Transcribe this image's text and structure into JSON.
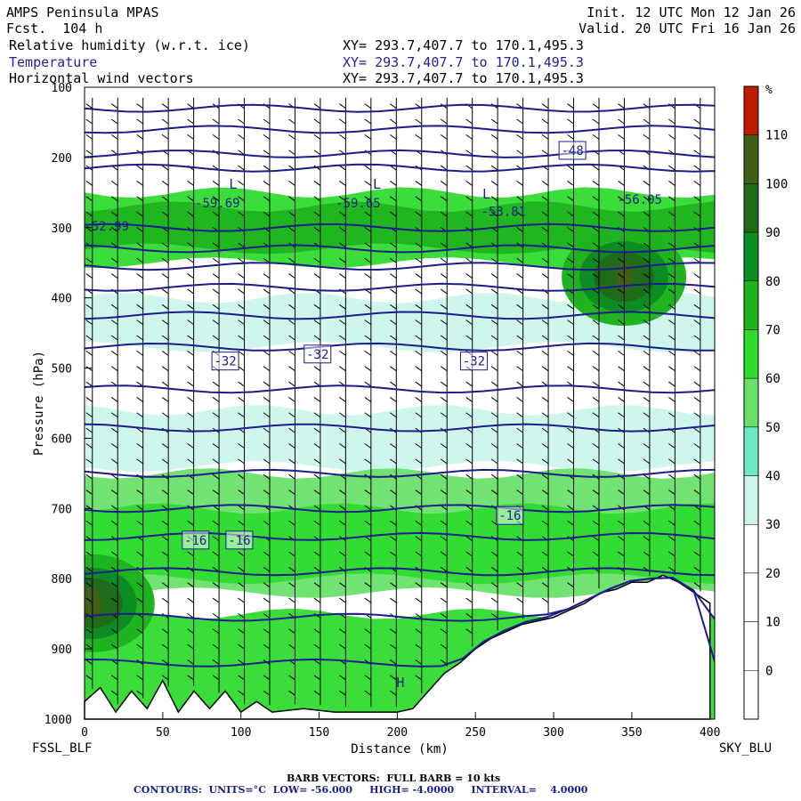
{
  "header": {
    "model": "AMPS Peninsula MPAS",
    "fcst": "Fcst.  104 h",
    "init": "Init. 12 UTC Mon 12 Jan 26",
    "valid": "Valid. 20 UTC Fri 16 Jan 26",
    "fields": [
      {
        "name": "Relative humidity (w.r.t. ice)",
        "xy": "XY= 293.7,407.7 to 170.1,495.3"
      },
      {
        "name": "Temperature",
        "xy": "XY= 293.7,407.7 to 170.1,495.3"
      },
      {
        "name": "Horizontal wind vectors",
        "xy": "XY= 293.7,407.7 to 170.1,495.3"
      }
    ]
  },
  "endpoints": {
    "left": "FSSL_BLF",
    "right": "SKY_BLU"
  },
  "footer": {
    "barb": "BARB VECTORS:  FULL BARB = 10 kts",
    "contours": "CONTOURS:  UNITS=°C  LOW= -56.000     HIGH= -4.0000     INTERVAL=    4.0000"
  },
  "colors": {
    "rh": [
      "#ffffff",
      "#ffffff",
      "#ffffff",
      "#ffffff",
      "#ccf5ec",
      "#6fe8c3",
      "#6ae06a",
      "#2fdb2f",
      "#1fb31f",
      "#0e8c24",
      "#1f6b1a",
      "#3f5f16",
      "#c01a00"
    ],
    "temperature": "#1c1c8c",
    "terrain": "#ffffff"
  },
  "chart_data": {
    "type": "heatmap",
    "xlabel": "Distance (km)",
    "ylabel": "Pressure (hPa)",
    "xlim": [
      0,
      403
    ],
    "ylim": [
      1000,
      100
    ],
    "xticks": [
      "0",
      "50",
      "100",
      "150",
      "200",
      "250",
      "300",
      "350",
      "400"
    ],
    "xtick_values": [
      0,
      50,
      100,
      150,
      200,
      250,
      300,
      350,
      400
    ],
    "yticks": [
      "100",
      "200",
      "300",
      "400",
      "500",
      "600",
      "700",
      "800",
      "900",
      "1000"
    ],
    "ytick_values": [
      100,
      200,
      300,
      400,
      500,
      600,
      700,
      800,
      900,
      1000
    ],
    "colorbar": {
      "unit": "%",
      "labels": [
        "110",
        "100",
        "90",
        "80",
        "70",
        "60",
        "50",
        "40",
        "30",
        "20",
        "10",
        "0"
      ],
      "levels": [
        110,
        100,
        90,
        80,
        70,
        60,
        50,
        40,
        30,
        20,
        10,
        0
      ]
    },
    "rh_layers": [
      {
        "p_top": 250,
        "p_bottom": 350,
        "rh": 70
      },
      {
        "p_top": 270,
        "p_bottom": 330,
        "rh": 80
      },
      {
        "p_top": 400,
        "p_bottom": 470,
        "rh": 40
      },
      {
        "p_top": 560,
        "p_bottom": 640,
        "rh": 40
      },
      {
        "p_top": 650,
        "p_bottom": 820,
        "rh": 60
      },
      {
        "p_top": 700,
        "p_bottom": 800,
        "rh": 75
      },
      {
        "p_top": 850,
        "p_bottom": 1000,
        "rh": 70
      }
    ],
    "rh_peaks": [
      {
        "x": 345,
        "p": 370,
        "rh": 110
      },
      {
        "x": 5,
        "p": 835,
        "rh": 110
      }
    ],
    "temperature_contours": {
      "low": -56,
      "high": -4,
      "interval": 4,
      "labels": [
        {
          "x": 14,
          "p": 298,
          "text": "-52.99"
        },
        {
          "x": 85,
          "p": 265,
          "text": "-59.69"
        },
        {
          "x": 175,
          "p": 265,
          "text": "-59.65"
        },
        {
          "x": 268,
          "p": 277,
          "text": "-53.81"
        },
        {
          "x": 355,
          "p": 260,
          "text": "-56.05"
        },
        {
          "x": 312,
          "p": 190,
          "text": "-48"
        },
        {
          "x": 90,
          "p": 490,
          "text": "-32"
        },
        {
          "x": 149,
          "p": 480,
          "text": "-32"
        },
        {
          "x": 249,
          "p": 490,
          "text": "-32"
        },
        {
          "x": 71,
          "p": 745,
          "text": "-16"
        },
        {
          "x": 99,
          "p": 745,
          "text": "-16"
        },
        {
          "x": 272,
          "p": 710,
          "text": "-16"
        }
      ],
      "minima": [
        {
          "x": 95,
          "p": 238,
          "text": "L"
        },
        {
          "x": 187,
          "p": 238,
          "text": "L"
        },
        {
          "x": 257,
          "p": 252,
          "text": "L"
        }
      ],
      "maxima": [
        {
          "x": 202,
          "p": 948,
          "text": "H"
        }
      ],
      "levels_p": [
        130,
        160,
        195,
        215,
        300,
        330,
        355,
        385,
        425,
        470,
        530,
        585,
        650,
        700,
        740,
        790,
        855,
        920
      ]
    },
    "terrain_surface": {
      "x": [
        0,
        10,
        20,
        30,
        40,
        50,
        60,
        70,
        80,
        90,
        100,
        110,
        120,
        140,
        160,
        180,
        200,
        210,
        220,
        230,
        240,
        250,
        260,
        270,
        280,
        290,
        300,
        310,
        320,
        330,
        340,
        350,
        360,
        370,
        380,
        390,
        400
      ],
      "p": [
        975,
        955,
        990,
        960,
        985,
        945,
        990,
        960,
        985,
        960,
        990,
        975,
        990,
        985,
        990,
        990,
        990,
        985,
        960,
        935,
        920,
        900,
        885,
        875,
        865,
        860,
        855,
        845,
        835,
        820,
        815,
        805,
        805,
        795,
        805,
        820,
        835
      ]
    }
  }
}
